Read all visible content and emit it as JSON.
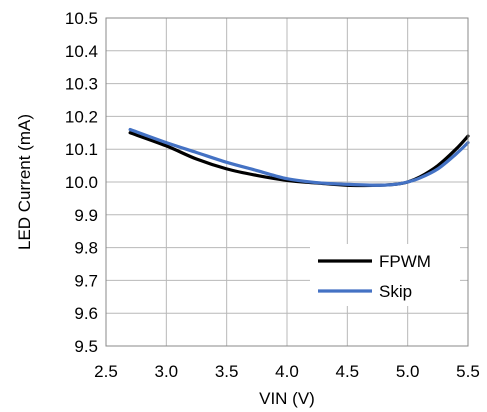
{
  "chart_data": {
    "type": "line",
    "title": "",
    "xlabel": "VIN (V)",
    "ylabel": "LED Current (mA)",
    "xlim": [
      2.5,
      5.5
    ],
    "ylim": [
      9.5,
      10.5
    ],
    "xticks": [
      "2.5",
      "3.0",
      "3.5",
      "4.0",
      "4.5",
      "5.0",
      "5.5"
    ],
    "yticks": [
      "9.5",
      "9.6",
      "9.7",
      "9.8",
      "9.9",
      "10.0",
      "10.1",
      "10.2",
      "10.3",
      "10.4",
      "10.5"
    ],
    "grid": true,
    "legend_position": "bottom-right",
    "series": [
      {
        "name": "FPWM",
        "color": "#000000",
        "x": [
          2.7,
          3.0,
          3.25,
          3.5,
          3.75,
          4.0,
          4.25,
          4.5,
          4.75,
          4.9,
          5.0,
          5.1,
          5.25,
          5.4,
          5.5
        ],
        "y": [
          10.15,
          10.11,
          10.07,
          10.04,
          10.02,
          10.005,
          9.997,
          9.99,
          9.99,
          9.993,
          10.0,
          10.015,
          10.05,
          10.1,
          10.14
        ]
      },
      {
        "name": "Skip",
        "color": "#4472c4",
        "x": [
          2.7,
          3.0,
          3.25,
          3.5,
          3.75,
          4.0,
          4.25,
          4.5,
          4.75,
          4.9,
          5.0,
          5.1,
          5.25,
          5.4,
          5.5
        ],
        "y": [
          10.16,
          10.12,
          10.09,
          10.06,
          10.035,
          10.01,
          9.998,
          9.993,
          9.99,
          9.993,
          10.0,
          10.012,
          10.04,
          10.085,
          10.12
        ]
      }
    ]
  }
}
